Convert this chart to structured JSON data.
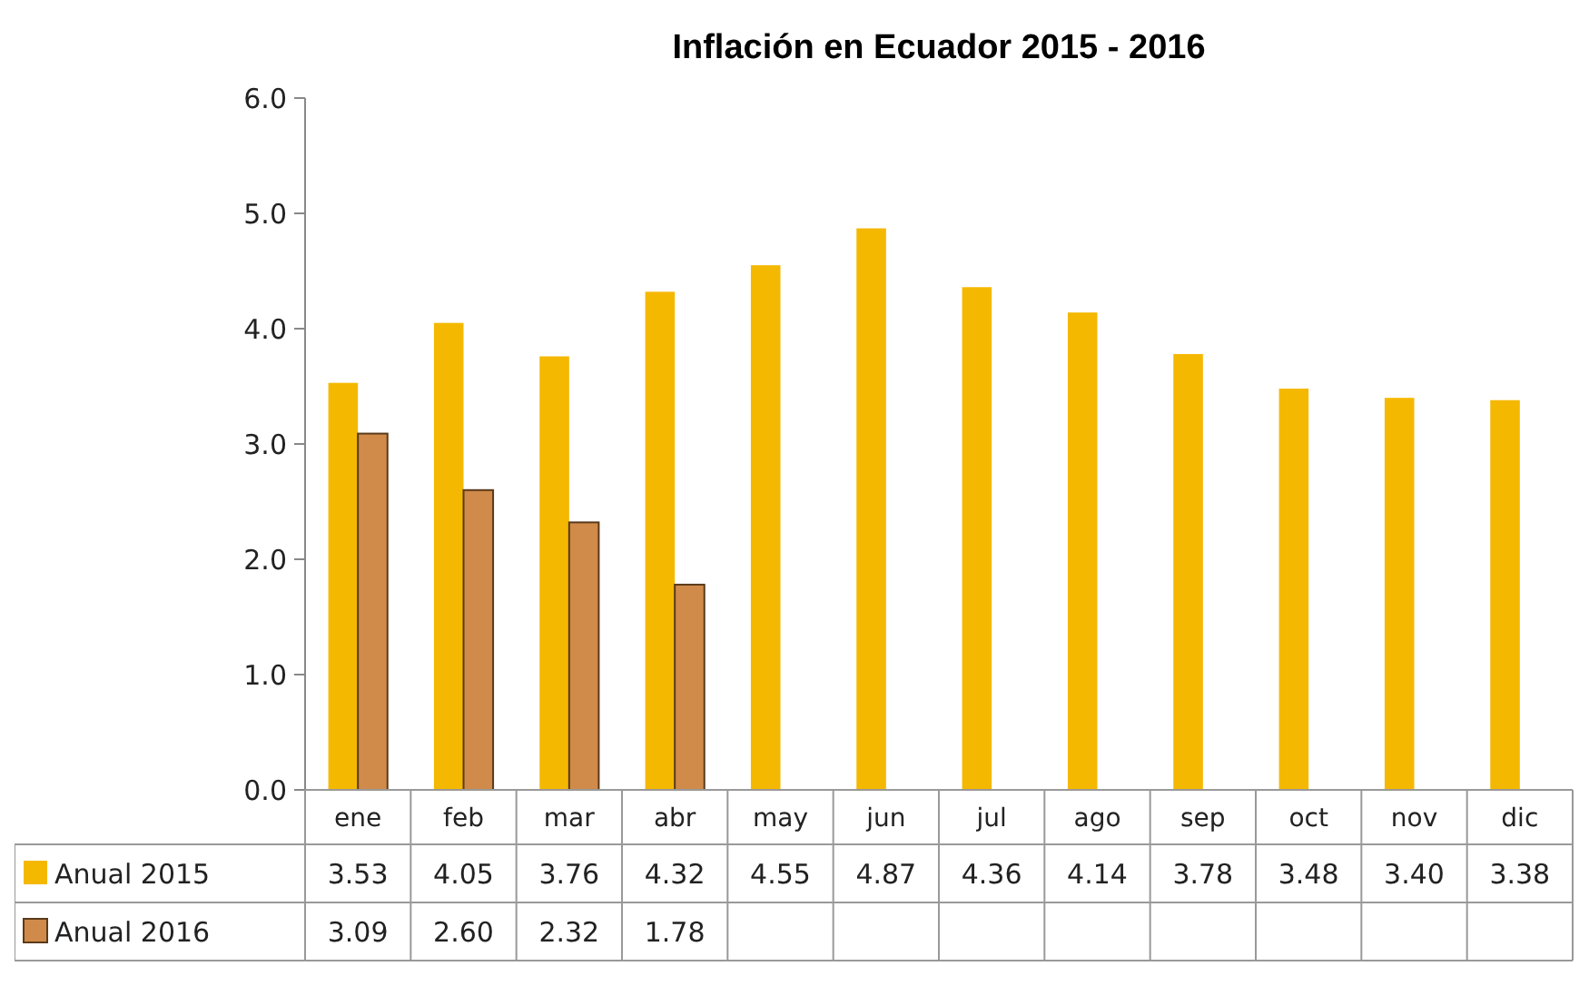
{
  "chart_data": {
    "type": "bar",
    "title": "Inflación en Ecuador 2015 - 2016",
    "categories": [
      "ene",
      "feb",
      "mar",
      "abr",
      "may",
      "jun",
      "jul",
      "ago",
      "sep",
      "oct",
      "nov",
      "dic"
    ],
    "series": [
      {
        "name": "Anual 2015",
        "color": "#f5b800",
        "values": [
          3.53,
          4.05,
          3.76,
          4.32,
          4.55,
          4.87,
          4.36,
          4.14,
          3.78,
          3.48,
          3.4,
          3.38
        ],
        "value_labels": [
          "3.53",
          "4.05",
          "3.76",
          "4.32",
          "4.55",
          "4.87",
          "4.36",
          "4.14",
          "3.78",
          "3.48",
          "3.40",
          "3.38"
        ]
      },
      {
        "name": "Anual 2016",
        "color": "#d08a4a",
        "values": [
          3.09,
          2.6,
          2.32,
          1.78,
          null,
          null,
          null,
          null,
          null,
          null,
          null,
          null
        ],
        "value_labels": [
          "3.09",
          "2.60",
          "2.32",
          "1.78",
          null,
          null,
          null,
          null,
          null,
          null,
          null,
          null
        ]
      }
    ],
    "ylim": [
      0,
      6
    ],
    "yticks": [
      {
        "value": 0,
        "label": "0.0"
      },
      {
        "value": 1,
        "label": "1.0"
      },
      {
        "value": 2,
        "label": "2.0"
      },
      {
        "value": 3,
        "label": "3.0"
      },
      {
        "value": 4,
        "label": "4.0"
      },
      {
        "value": 5,
        "label": "5.0"
      },
      {
        "value": 6,
        "label": "6.0"
      }
    ],
    "legend": "bottom",
    "grid": false
  }
}
